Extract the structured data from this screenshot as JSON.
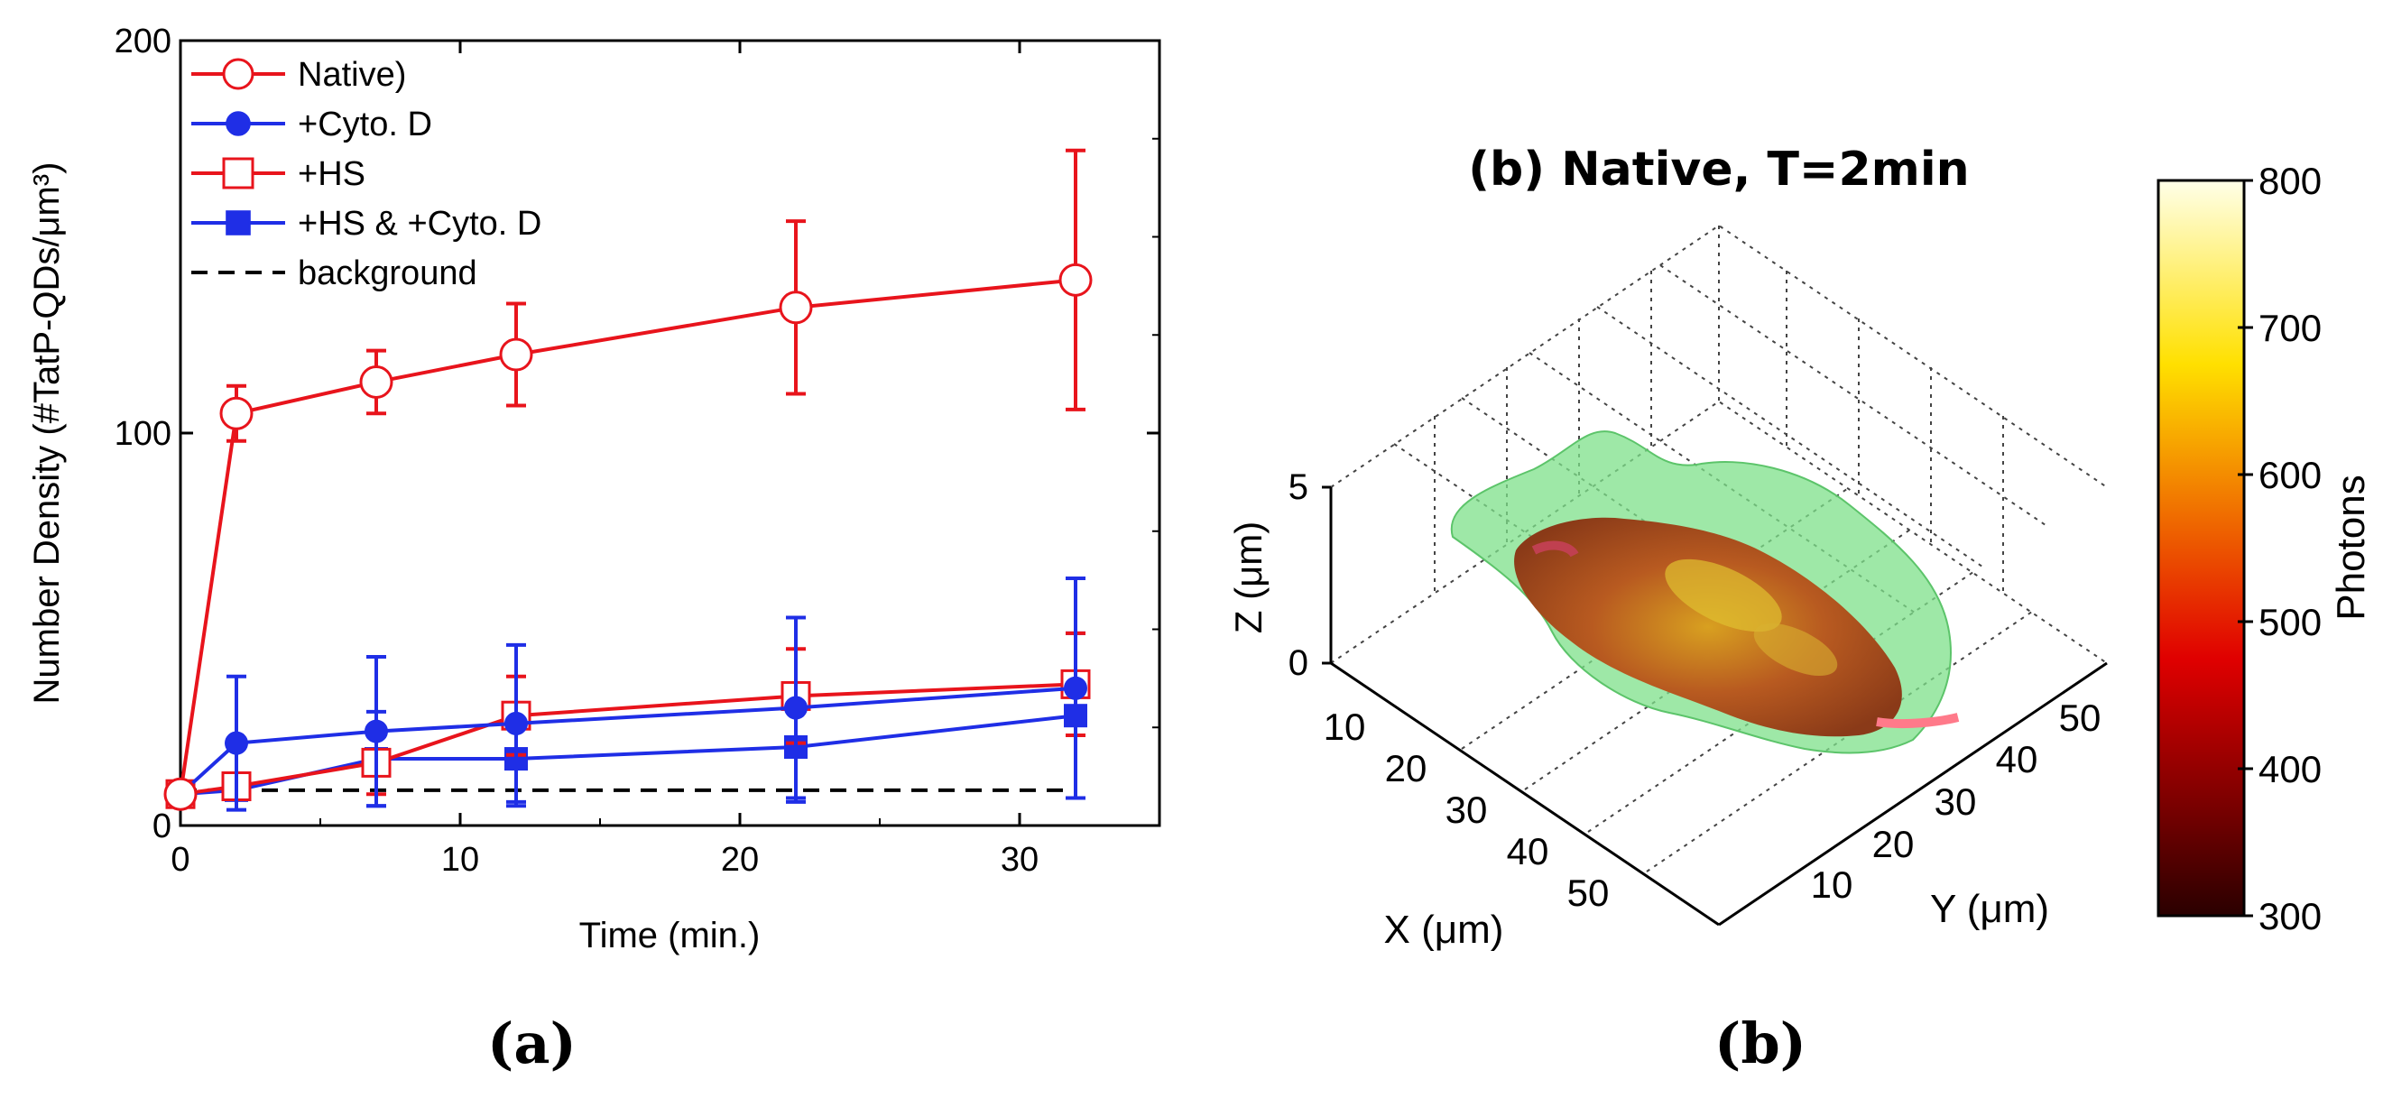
{
  "chart_data": {
    "type": "line",
    "title": "",
    "xlabel": "Time (min.)",
    "ylabel": "Number Density (#TatP-QDs/μm³)",
    "xlim": [
      0,
      35
    ],
    "ylim": [
      0,
      200
    ],
    "xticks": [
      0,
      10,
      20,
      30
    ],
    "yticks": [
      0,
      100,
      200
    ],
    "legend_position": "top-left",
    "series": [
      {
        "name": "Native)",
        "color": "#e8141c",
        "marker": "circle-open",
        "dash": "solid",
        "x": [
          0,
          2,
          7,
          12,
          22,
          32
        ],
        "y": [
          8,
          105,
          113,
          120,
          132,
          139
        ],
        "err": [
          0,
          7,
          8,
          13,
          22,
          33
        ]
      },
      {
        "name": "+Cyto. D",
        "color": "#1f2ee6",
        "marker": "circle-filled",
        "dash": "solid",
        "x": [
          0,
          2,
          7,
          12,
          22,
          32
        ],
        "y": [
          8,
          21,
          24,
          26,
          30,
          35
        ],
        "err": [
          0,
          17,
          19,
          20,
          23,
          28
        ]
      },
      {
        "name": "+HS",
        "color": "#e8141c",
        "marker": "square-open",
        "dash": "solid",
        "x": [
          0,
          2,
          7,
          12,
          22,
          32
        ],
        "y": [
          8,
          10,
          16,
          28,
          33,
          36
        ],
        "err": [
          0,
          3,
          8,
          10,
          12,
          13
        ]
      },
      {
        "name": "+HS & +Cyto. D",
        "color": "#1f2ee6",
        "marker": "square-filled",
        "dash": "solid",
        "x": [
          0,
          2,
          7,
          12,
          22,
          32
        ],
        "y": [
          8,
          9,
          17,
          17,
          20,
          28
        ],
        "err": [
          0,
          2,
          12,
          12,
          14,
          21
        ]
      },
      {
        "name": "background",
        "color": "#000000",
        "marker": "none",
        "dash": "dashed",
        "x": [
          0,
          32
        ],
        "y": [
          9,
          9
        ],
        "err": [
          0,
          0
        ]
      }
    ]
  },
  "panel_b": {
    "title": "(b) Native, T=2min",
    "z_axis_label": "Z (μm)",
    "z_ticks": [
      "5",
      "0"
    ],
    "x_axis_label": "X (μm)",
    "x_ticks": [
      "10",
      "20",
      "30",
      "40",
      "50"
    ],
    "y_axis_label": "Y (μm)",
    "y_ticks": [
      "10",
      "20",
      "30",
      "40",
      "50"
    ],
    "colorbar_label": "Photons",
    "colorbar_ticks": [
      "800",
      "700",
      "600",
      "500",
      "400",
      "300"
    ],
    "colorbar_range": [
      300,
      800
    ]
  },
  "captions": {
    "a": "(a)",
    "b": "(b)"
  }
}
